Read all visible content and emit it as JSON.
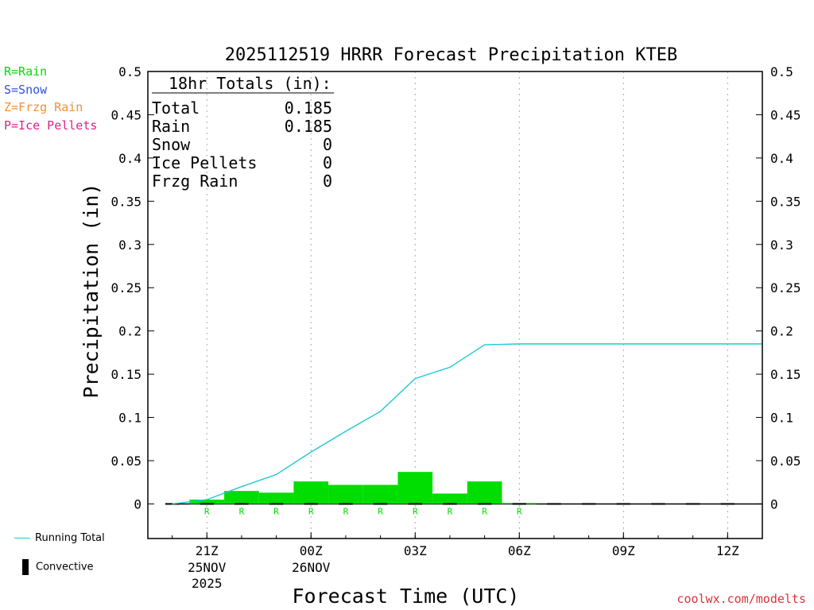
{
  "colors": {
    "rain": "#00dd00",
    "snow": "#3050e0",
    "frzg_rain": "#f0903a",
    "ice_pellets": "#e0208a",
    "running_total": "#20c8d0",
    "convective": "#000000",
    "grid": "#aaaaaa",
    "credit": "#e0303a"
  },
  "legend": {
    "rain": "R=Rain",
    "snow": "S=Snow",
    "frzg_rain": "Z=Frzg Rain",
    "ice_pellets": "P=Ice Pellets",
    "running_total": "Running Total",
    "convective": "Convective"
  },
  "credit": "coolwx.com/modelts",
  "chart_data": {
    "type": "bar",
    "title": "2025112519 HRRR Forecast Precipitation KTEB",
    "xlabel": "Forecast Time (UTC)",
    "ylabel": "Precipitation (in)",
    "ylim": [
      -0.04,
      0.5
    ],
    "y_ticks": [
      "0",
      "0.05",
      "0.1",
      "0.15",
      "0.2",
      "0.25",
      "0.3",
      "0.35",
      "0.4",
      "0.45",
      "0.5"
    ],
    "xlim_hours": [
      19.3,
      37
    ],
    "x_ticks": [
      {
        "hour": 21,
        "label": "21Z",
        "line2": "25NOV",
        "line3": "2025"
      },
      {
        "hour": 24,
        "label": "00Z",
        "line2": "26NOV",
        "line3": ""
      },
      {
        "hour": 27,
        "label": "03Z",
        "line2": "",
        "line3": ""
      },
      {
        "hour": 30,
        "label": "06Z",
        "line2": "",
        "line3": ""
      },
      {
        "hour": 33,
        "label": "09Z",
        "line2": "",
        "line3": ""
      },
      {
        "hour": 36,
        "label": "12Z",
        "line2": "",
        "line3": ""
      }
    ],
    "totals_box": {
      "heading": "18hr Totals (in):",
      "rows": [
        {
          "label": "Total",
          "value": "0.185"
        },
        {
          "label": "Rain",
          "value": "0.185"
        },
        {
          "label": "Snow",
          "value": "0"
        },
        {
          "label": "Ice Pellets",
          "value": "0"
        },
        {
          "label": "Frzg Rain",
          "value": "0"
        }
      ]
    },
    "series": [
      {
        "name": "Rain",
        "type": "hourly_bars",
        "hours": [
          21,
          22,
          23,
          24,
          25,
          26,
          27,
          28,
          29,
          30
        ],
        "values": [
          0.005,
          0.015,
          0.013,
          0.026,
          0.022,
          0.022,
          0.037,
          0.012,
          0.026,
          0.001
        ],
        "type_labels": [
          "R",
          "R",
          "R",
          "R",
          "R",
          "R",
          "R",
          "R",
          "R",
          "R"
        ]
      },
      {
        "name": "Running Total",
        "type": "line",
        "hours": [
          20,
          21,
          22,
          23,
          24,
          25,
          26,
          27,
          28,
          29,
          30,
          31,
          32,
          33,
          34,
          35,
          36,
          37
        ],
        "values": [
          0,
          0.005,
          0.02,
          0.034,
          0.06,
          0.084,
          0.107,
          0.145,
          0.158,
          0.184,
          0.185,
          0.185,
          0.185,
          0.185,
          0.185,
          0.185,
          0.185,
          0.185
        ]
      },
      {
        "name": "Convective",
        "type": "hourly_bars",
        "hours": [
          20,
          21,
          22,
          23,
          24,
          25,
          26,
          27,
          28,
          29,
          30,
          31,
          32,
          33,
          34,
          35,
          36
        ],
        "values": [
          0,
          0,
          0,
          0,
          0,
          0,
          0,
          0,
          0,
          0,
          0,
          0,
          0,
          0,
          0,
          0,
          0
        ]
      }
    ]
  }
}
